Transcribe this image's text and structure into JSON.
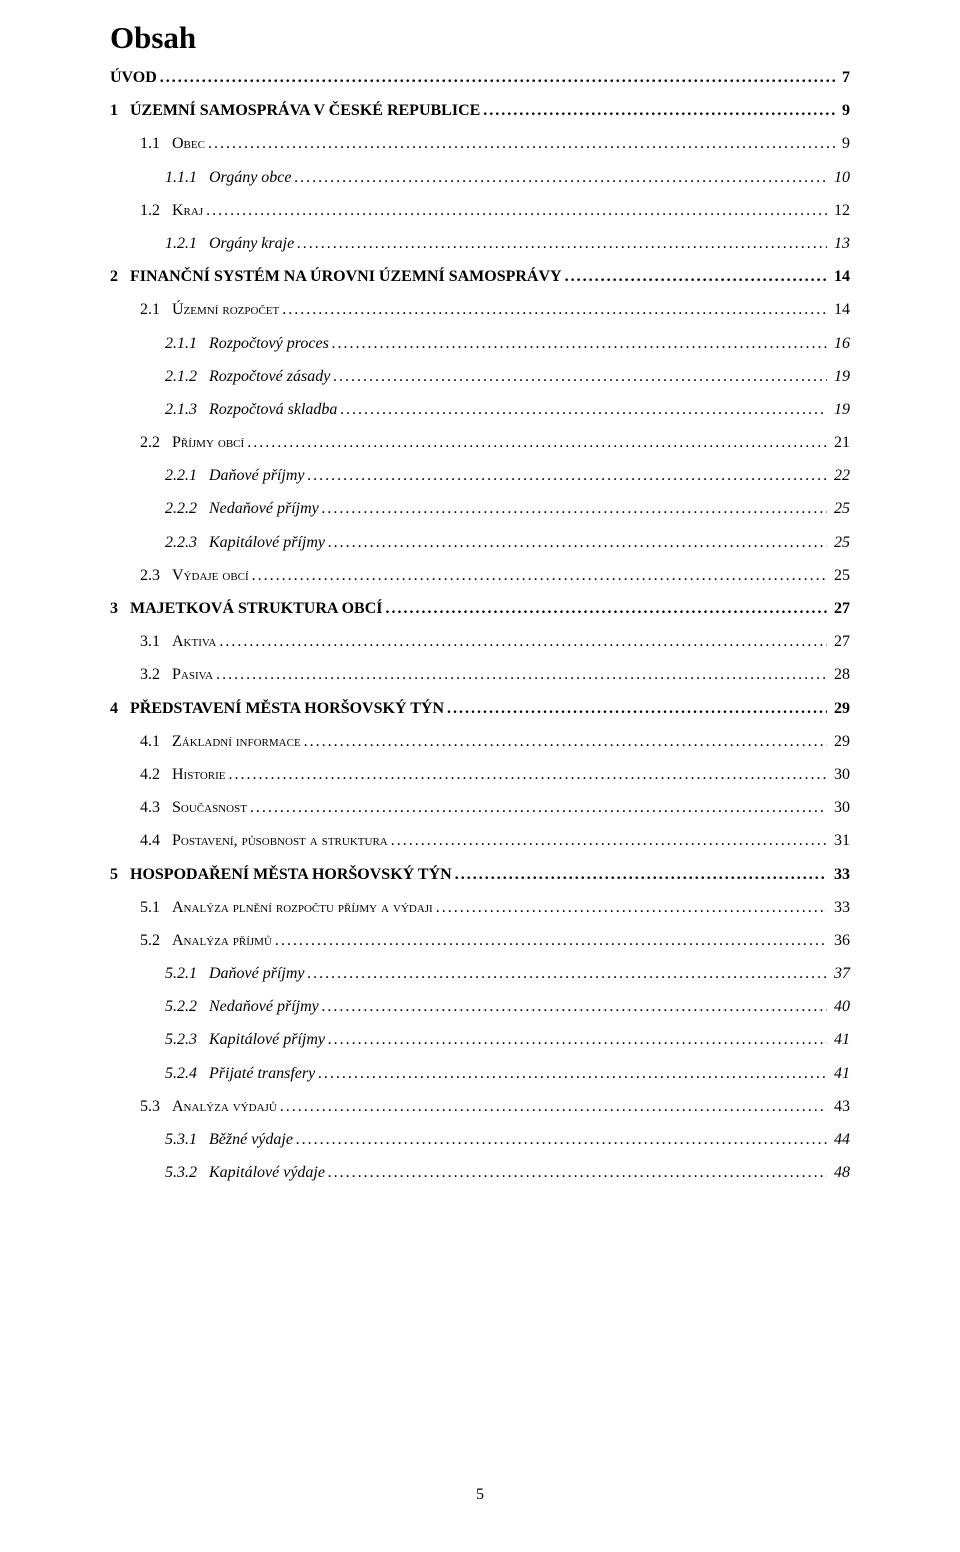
{
  "heading": "Obsah",
  "page_number": "5",
  "entries": [
    {
      "lvl": 1,
      "num": "",
      "label": "ÚVOD",
      "page": "7",
      "bold": true,
      "italic": false,
      "sc": false
    },
    {
      "lvl": 1,
      "num": "1",
      "label": "ÚZEMNÍ SAMOSPRÁVA V ČESKÉ REPUBLICE",
      "page": "9",
      "bold": true,
      "italic": false,
      "sc": false
    },
    {
      "lvl": 2,
      "num": "1.1",
      "label": "Obec",
      "page": "9",
      "bold": false,
      "italic": false,
      "sc": true
    },
    {
      "lvl": 3,
      "num": "1.1.1",
      "label": "Orgány obce",
      "page": "10",
      "bold": false,
      "italic": true,
      "sc": false
    },
    {
      "lvl": 2,
      "num": "1.2",
      "label": "Kraj",
      "page": "12",
      "bold": false,
      "italic": false,
      "sc": true
    },
    {
      "lvl": 3,
      "num": "1.2.1",
      "label": "Orgány kraje",
      "page": "13",
      "bold": false,
      "italic": true,
      "sc": false
    },
    {
      "lvl": 1,
      "num": "2",
      "label": "FINANČNÍ SYSTÉM NA ÚROVNI ÚZEMNÍ SAMOSPRÁVY",
      "page": "14",
      "bold": true,
      "italic": false,
      "sc": false
    },
    {
      "lvl": 2,
      "num": "2.1",
      "label": "Územní rozpočet",
      "page": "14",
      "bold": false,
      "italic": false,
      "sc": true
    },
    {
      "lvl": 3,
      "num": "2.1.1",
      "label": "Rozpočtový proces",
      "page": "16",
      "bold": false,
      "italic": true,
      "sc": false
    },
    {
      "lvl": 3,
      "num": "2.1.2",
      "label": "Rozpočtové zásady",
      "page": "19",
      "bold": false,
      "italic": true,
      "sc": false
    },
    {
      "lvl": 3,
      "num": "2.1.3",
      "label": "Rozpočtová skladba",
      "page": "19",
      "bold": false,
      "italic": true,
      "sc": false
    },
    {
      "lvl": 2,
      "num": "2.2",
      "label": "Příjmy obcí",
      "page": "21",
      "bold": false,
      "italic": false,
      "sc": true
    },
    {
      "lvl": 3,
      "num": "2.2.1",
      "label": "Daňové příjmy",
      "page": "22",
      "bold": false,
      "italic": true,
      "sc": false
    },
    {
      "lvl": 3,
      "num": "2.2.2",
      "label": "Nedaňové příjmy",
      "page": "25",
      "bold": false,
      "italic": true,
      "sc": false
    },
    {
      "lvl": 3,
      "num": "2.2.3",
      "label": "Kapitálové příjmy",
      "page": "25",
      "bold": false,
      "italic": true,
      "sc": false
    },
    {
      "lvl": 2,
      "num": "2.3",
      "label": "Výdaje obcí",
      "page": "25",
      "bold": false,
      "italic": false,
      "sc": true
    },
    {
      "lvl": 1,
      "num": "3",
      "label": "MAJETKOVÁ STRUKTURA OBCÍ",
      "page": "27",
      "bold": true,
      "italic": false,
      "sc": false
    },
    {
      "lvl": 2,
      "num": "3.1",
      "label": "Aktiva",
      "page": "27",
      "bold": false,
      "italic": false,
      "sc": true
    },
    {
      "lvl": 2,
      "num": "3.2",
      "label": "Pasiva",
      "page": "28",
      "bold": false,
      "italic": false,
      "sc": true
    },
    {
      "lvl": 1,
      "num": "4",
      "label": "PŘEDSTAVENÍ MĚSTA HORŠOVSKÝ TÝN",
      "page": "29",
      "bold": true,
      "italic": false,
      "sc": false
    },
    {
      "lvl": 2,
      "num": "4.1",
      "label": "Základní informace",
      "page": "29",
      "bold": false,
      "italic": false,
      "sc": true
    },
    {
      "lvl": 2,
      "num": "4.2",
      "label": "Historie",
      "page": "30",
      "bold": false,
      "italic": false,
      "sc": true
    },
    {
      "lvl": 2,
      "num": "4.3",
      "label": "Současnost",
      "page": "30",
      "bold": false,
      "italic": false,
      "sc": true
    },
    {
      "lvl": 2,
      "num": "4.4",
      "label": "Postavení, působnost a struktura",
      "page": "31",
      "bold": false,
      "italic": false,
      "sc": true
    },
    {
      "lvl": 1,
      "num": "5",
      "label": "HOSPODAŘENÍ MĚSTA HORŠOVSKÝ TÝN",
      "page": "33",
      "bold": true,
      "italic": false,
      "sc": false
    },
    {
      "lvl": 2,
      "num": "5.1",
      "label": "Analýza plnění rozpočtu příjmy a výdaji",
      "page": "33",
      "bold": false,
      "italic": false,
      "sc": true
    },
    {
      "lvl": 2,
      "num": "5.2",
      "label": "Analýza příjmů",
      "page": "36",
      "bold": false,
      "italic": false,
      "sc": true
    },
    {
      "lvl": 3,
      "num": "5.2.1",
      "label": "Daňové příjmy",
      "page": "37",
      "bold": false,
      "italic": true,
      "sc": false
    },
    {
      "lvl": 3,
      "num": "5.2.2",
      "label": "Nedaňové příjmy",
      "page": "40",
      "bold": false,
      "italic": true,
      "sc": false
    },
    {
      "lvl": 3,
      "num": "5.2.3",
      "label": "Kapitálové příjmy",
      "page": "41",
      "bold": false,
      "italic": true,
      "sc": false
    },
    {
      "lvl": 3,
      "num": "5.2.4",
      "label": "Přijaté transfery",
      "page": "41",
      "bold": false,
      "italic": true,
      "sc": false
    },
    {
      "lvl": 2,
      "num": "5.3",
      "label": "Analýza výdajů",
      "page": "43",
      "bold": false,
      "italic": false,
      "sc": true
    },
    {
      "lvl": 3,
      "num": "5.3.1",
      "label": "Běžné výdaje",
      "page": "44",
      "bold": false,
      "italic": true,
      "sc": false
    },
    {
      "lvl": 3,
      "num": "5.3.2",
      "label": "Kapitálové výdaje",
      "page": "48",
      "bold": false,
      "italic": true,
      "sc": false
    }
  ]
}
